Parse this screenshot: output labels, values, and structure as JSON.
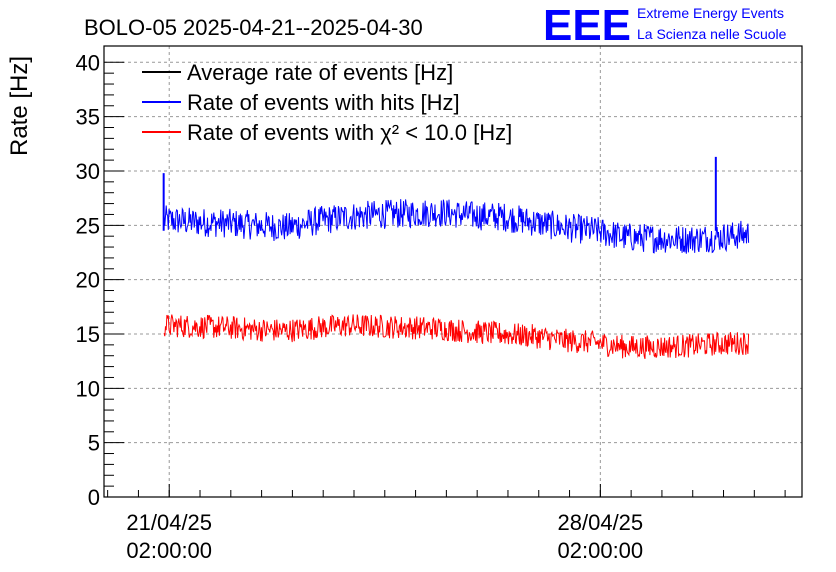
{
  "chart_data": {
    "type": "line",
    "title": "BOLO-05 2025-04-21--2025-04-30",
    "ylabel": "Rate [Hz]",
    "xlabel": "",
    "ylim": [
      0,
      41.5
    ],
    "yticks": [
      0,
      5,
      10,
      15,
      20,
      25,
      30,
      35,
      40
    ],
    "yticklabels": [
      "0",
      "5",
      "10",
      "15",
      "20",
      "25",
      "30",
      "35",
      "40"
    ],
    "xlim": [
      "2025-04-20T00:35:00",
      "2025-05-01T08:35:00"
    ],
    "xticks": [
      {
        "x": "2025-04-21T02:00:00",
        "line1": "21/04/25",
        "line2": "02:00:00"
      },
      {
        "x": "2025-04-28T02:00:00",
        "line1": "28/04/25",
        "line2": "02:00:00"
      }
    ],
    "grid": true,
    "legend_position": "top-left",
    "series": [
      {
        "name": "Average rate of events [Hz]",
        "color": "#000000",
        "x": [],
        "y": []
      },
      {
        "name": "Rate of events with hits [Hz]",
        "color": "#0000ff",
        "x": [
          "2025-04-21T00:00:00",
          "2025-04-21T12:00:00",
          "2025-04-22T00:00:00",
          "2025-04-22T12:00:00",
          "2025-04-23T00:00:00",
          "2025-04-23T12:00:00",
          "2025-04-24T00:00:00",
          "2025-04-24T12:00:00",
          "2025-04-25T00:00:00",
          "2025-04-25T12:00:00",
          "2025-04-26T00:00:00",
          "2025-04-26T12:00:00",
          "2025-04-27T00:00:00",
          "2025-04-27T12:00:00",
          "2025-04-28T00:00:00",
          "2025-04-28T12:00:00",
          "2025-04-29T00:00:00",
          "2025-04-29T12:00:00",
          "2025-04-30T00:00:00",
          "2025-04-30T12:00:00"
        ],
        "y": [
          25.5,
          25.3,
          25.2,
          25.0,
          24.8,
          25.4,
          25.8,
          26.0,
          26.1,
          26.2,
          25.9,
          25.8,
          25.3,
          24.8,
          24.5,
          23.9,
          23.8,
          23.7,
          23.9,
          24.2
        ],
        "spikes": [
          {
            "x": "2025-04-20T23:50:00",
            "y": 29.8
          },
          {
            "x": "2025-04-29T23:00:00",
            "y": 31.3
          }
        ]
      },
      {
        "name": "Rate of events with χ² < 10.0 [Hz]",
        "color": "#ff0000",
        "x": [
          "2025-04-21T00:00:00",
          "2025-04-21T12:00:00",
          "2025-04-22T00:00:00",
          "2025-04-22T12:00:00",
          "2025-04-23T00:00:00",
          "2025-04-23T12:00:00",
          "2025-04-24T00:00:00",
          "2025-04-24T12:00:00",
          "2025-04-25T00:00:00",
          "2025-04-25T12:00:00",
          "2025-04-26T00:00:00",
          "2025-04-26T12:00:00",
          "2025-04-27T00:00:00",
          "2025-04-27T12:00:00",
          "2025-04-28T00:00:00",
          "2025-04-28T12:00:00",
          "2025-04-29T00:00:00",
          "2025-04-29T12:00:00",
          "2025-04-30T00:00:00",
          "2025-04-30T12:00:00"
        ],
        "y": [
          15.8,
          15.7,
          15.6,
          15.4,
          15.3,
          15.6,
          15.8,
          15.7,
          15.6,
          15.5,
          15.2,
          15.0,
          14.8,
          14.4,
          14.2,
          13.8,
          13.8,
          13.9,
          14.1,
          14.2
        ]
      }
    ],
    "legend": [
      {
        "label": "Average rate of events [Hz]",
        "color": "#000000"
      },
      {
        "label": "Rate of events with hits [Hz]",
        "color": "#0000ff"
      },
      {
        "label": "Rate of events with χ² < 10.0 [Hz]",
        "color": "#ff0000"
      }
    ]
  },
  "logo": {
    "mark": "EEE",
    "line1": "Extreme Energy Events",
    "line2": "La Scienza nelle Scuole",
    "color": "#0000ff"
  }
}
